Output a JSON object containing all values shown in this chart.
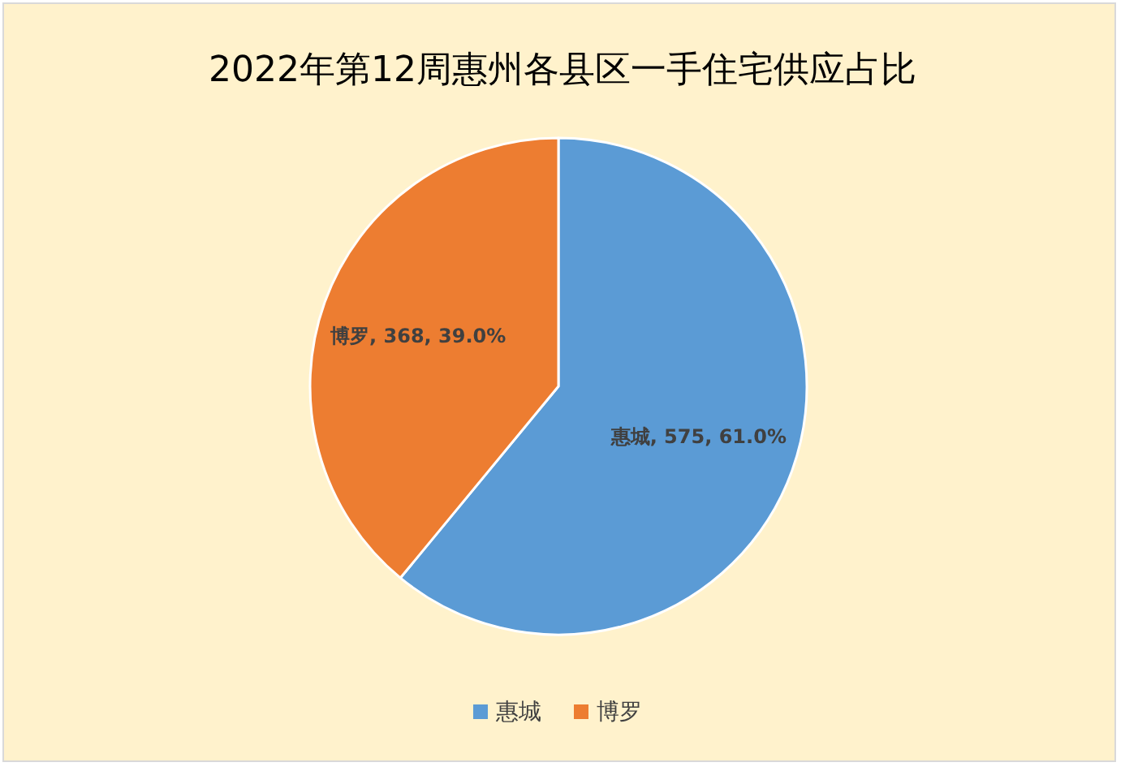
{
  "chart_data": {
    "type": "pie",
    "title": "2022年第12周惠州各县区一手住宅供应占比",
    "categories": [
      "惠城",
      "博罗"
    ],
    "values": [
      575,
      368
    ],
    "colors": [
      "#5b9bd5",
      "#ed7d31"
    ],
    "value_labels": [
      "惠城, 575, 61.0%",
      "博罗, 368, 39.0%"
    ],
    "legend": "bottom"
  }
}
